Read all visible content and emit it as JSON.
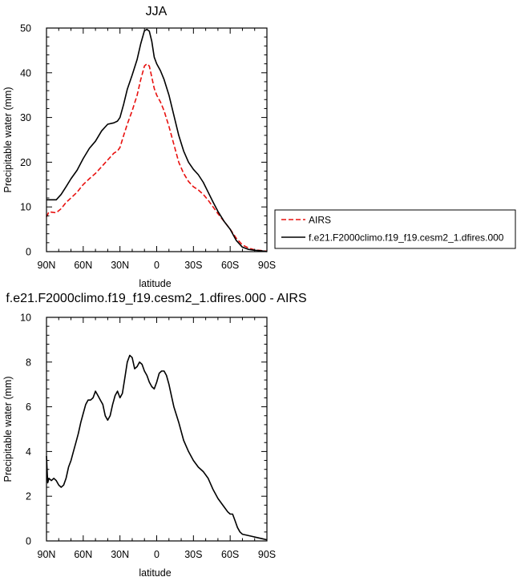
{
  "chart_data": [
    {
      "type": "line",
      "title": "JJA",
      "xlabel": "latitude",
      "ylabel": "Precipitable water (mm)",
      "xlim": [
        90,
        -90
      ],
      "ylim": [
        0,
        50
      ],
      "x_ticks": [
        90,
        60,
        30,
        0,
        -30,
        -60,
        -90
      ],
      "x_tick_labels": [
        "90N",
        "60N",
        "30N",
        "0",
        "30S",
        "60S",
        "90S"
      ],
      "y_ticks": [
        0,
        10,
        20,
        30,
        40,
        50
      ],
      "y_tick_labels": [
        "0",
        "10",
        "20",
        "30",
        "40",
        "50"
      ],
      "grid": false,
      "legend_position": "right",
      "series": [
        {
          "name": "AIRS",
          "color": "#e8110f",
          "dash": true,
          "x": [
            90,
            88,
            85,
            82,
            78,
            74,
            70,
            65,
            60,
            55,
            50,
            45,
            40,
            35,
            32,
            30,
            27,
            24,
            20,
            16,
            13,
            10,
            8,
            6,
            4,
            2,
            0,
            -3,
            -6,
            -10,
            -14,
            -18,
            -22,
            -26,
            -30,
            -34,
            -38,
            -42,
            -46,
            -50,
            -55,
            -60,
            -65,
            -70,
            -75,
            -80,
            -85,
            -88,
            -90
          ],
          "y": [
            7.8,
            8.9,
            8.8,
            8.7,
            9.6,
            11.0,
            12.0,
            13.3,
            15.0,
            16.3,
            17.5,
            19.0,
            20.5,
            22.0,
            22.5,
            23.3,
            26.0,
            28.5,
            31.5,
            35.0,
            38.5,
            41.5,
            42.0,
            41.5,
            39.0,
            36.5,
            35.0,
            33.5,
            31.5,
            28.0,
            24.0,
            20.0,
            17.5,
            15.7,
            14.5,
            13.8,
            12.8,
            11.5,
            10.0,
            8.5,
            6.8,
            5.0,
            3.0,
            1.5,
            0.8,
            0.4,
            0.25,
            0.15,
            0.1
          ]
        },
        {
          "name": "f.e21.F2000climo.f19_f19.cesm2_1.dfires.000",
          "color": "#000000",
          "dash": false,
          "x": [
            90,
            88,
            85,
            82,
            78,
            74,
            70,
            65,
            60,
            55,
            50,
            45,
            40,
            35,
            32,
            30,
            27,
            24,
            20,
            16,
            13,
            10,
            8,
            6,
            4,
            2,
            0,
            -3,
            -6,
            -10,
            -14,
            -18,
            -22,
            -26,
            -30,
            -34,
            -38,
            -42,
            -46,
            -50,
            -55,
            -60,
            -65,
            -70,
            -75,
            -80,
            -85,
            -88,
            -90
          ],
          "y": [
            11.6,
            11.6,
            11.6,
            11.6,
            12.8,
            14.5,
            16.3,
            18.2,
            20.8,
            23.1,
            24.7,
            27.0,
            28.5,
            28.8,
            29.2,
            30.0,
            33.0,
            36.3,
            39.5,
            43.0,
            46.5,
            49.4,
            49.7,
            49.3,
            47.0,
            43.5,
            42.0,
            40.5,
            38.5,
            35.0,
            30.5,
            26.0,
            22.5,
            20.0,
            18.4,
            17.2,
            15.5,
            13.3,
            11.1,
            9.0,
            6.8,
            5.0,
            2.5,
            1.0,
            0.5,
            0.3,
            0.2,
            0.1,
            0.0
          ]
        }
      ]
    },
    {
      "type": "line",
      "title": "f.e21.F2000climo.f19_f19.cesm2_1.dfires.000 - AIRS",
      "xlabel": "latitude",
      "ylabel": "Precipitable water (mm)",
      "xlim": [
        90,
        -90
      ],
      "ylim": [
        0,
        10
      ],
      "x_ticks": [
        90,
        60,
        30,
        0,
        -30,
        -60,
        -90
      ],
      "x_tick_labels": [
        "90N",
        "60N",
        "30N",
        "0",
        "30S",
        "60S",
        "90S"
      ],
      "y_ticks": [
        0,
        2,
        4,
        6,
        8,
        10
      ],
      "y_tick_labels": [
        "0",
        "2",
        "4",
        "6",
        "8",
        "10"
      ],
      "grid": false,
      "series": [
        {
          "color": "#000000",
          "dash": false,
          "x": [
            90,
            89,
            88,
            86,
            84,
            82,
            80,
            78,
            76,
            74,
            72,
            70,
            68,
            66,
            64,
            62,
            60,
            58,
            56,
            54,
            52,
            50,
            48,
            46,
            44,
            42,
            40,
            38,
            36,
            34,
            32,
            30,
            28,
            26,
            24,
            22,
            20,
            18,
            16,
            14,
            12,
            10,
            8,
            6,
            4,
            2,
            0,
            -2,
            -4,
            -6,
            -8,
            -10,
            -12,
            -14,
            -18,
            -22,
            -26,
            -30,
            -34,
            -38,
            -42,
            -46,
            -50,
            -54,
            -58,
            -60,
            -62,
            -64,
            -66,
            -68,
            -70,
            -74,
            -78,
            -82,
            -86,
            -90
          ],
          "y": [
            3.8,
            2.6,
            2.8,
            2.7,
            2.8,
            2.7,
            2.5,
            2.4,
            2.5,
            2.8,
            3.3,
            3.6,
            4.0,
            4.4,
            4.8,
            5.3,
            5.7,
            6.1,
            6.3,
            6.3,
            6.4,
            6.7,
            6.5,
            6.3,
            6.1,
            5.6,
            5.4,
            5.6,
            6.1,
            6.5,
            6.7,
            6.4,
            6.6,
            7.3,
            8.0,
            8.3,
            8.2,
            7.7,
            7.8,
            8.0,
            7.9,
            7.6,
            7.4,
            7.1,
            6.9,
            6.8,
            7.1,
            7.5,
            7.6,
            7.6,
            7.4,
            7.0,
            6.5,
            6.0,
            5.3,
            4.5,
            4.0,
            3.6,
            3.3,
            3.1,
            2.8,
            2.3,
            1.9,
            1.6,
            1.3,
            1.2,
            1.2,
            0.9,
            0.6,
            0.4,
            0.3,
            0.25,
            0.2,
            0.15,
            0.1,
            0.05
          ]
        }
      ]
    }
  ]
}
